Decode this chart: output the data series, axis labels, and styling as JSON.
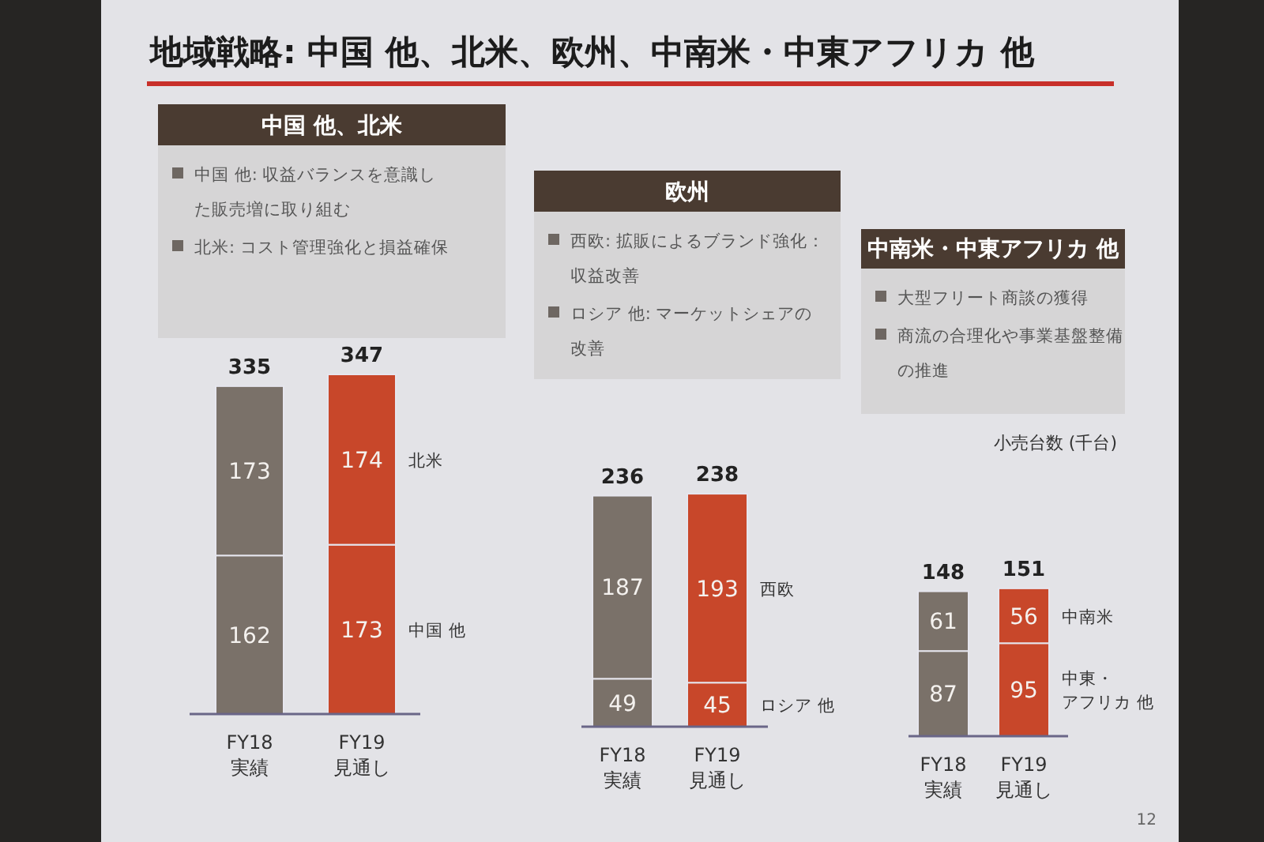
{
  "chart_data": [
    {
      "type": "other",
      "title": "地域戦略: 中国 他、北米、欧州、中南米・中東アフリカ 他",
      "annotations": [
        "12"
      ]
    },
    {
      "type": "bar",
      "title": "中国 他、北米",
      "annotations": [
        "中国 他: 収益バランスを意識した販売増に取り組む",
        "北米: コスト管理強化と損益確保"
      ],
      "categories": [
        "FY18\n実績",
        "FY19\n見通し"
      ],
      "stacked": true,
      "data_labels": true,
      "series": [
        {
          "name": "中国 他",
          "colors": [
            "#7a7169",
            "#c8472a"
          ],
          "values": [
            162,
            173
          ]
        },
        {
          "name": "北米",
          "colors": [
            "#7a7169",
            "#c8472a"
          ],
          "values": [
            173,
            174
          ]
        }
      ],
      "totals": [
        "335",
        "347"
      ]
    },
    {
      "type": "bar",
      "title": "欧州",
      "annotations": [
        "西欧: 拡販によるブランド強化：収益改善",
        "ロシア 他: マーケットシェアの改善"
      ],
      "categories": [
        "FY18\n実績",
        "FY19\n見通し"
      ],
      "stacked": true,
      "data_labels": true,
      "series": [
        {
          "name": "ロシア 他",
          "colors": [
            "#7a7169",
            "#c8472a"
          ],
          "values": [
            49,
            45
          ]
        },
        {
          "name": "西欧",
          "colors": [
            "#7a7169",
            "#c8472a"
          ],
          "values": [
            187,
            193
          ]
        }
      ],
      "totals": [
        "236",
        "238"
      ]
    },
    {
      "type": "bar",
      "title": "中南米・中東アフリカ 他",
      "ylabel": "小売台数 (千台)",
      "annotations": [
        "大型フリート商談の獲得",
        "商流の合理化や事業基盤整備の推進"
      ],
      "categories": [
        "FY18\n実績",
        "FY19\n見通し"
      ],
      "stacked": true,
      "data_labels": true,
      "series": [
        {
          "name": "中東・アフリカ 他",
          "colors": [
            "#7a7169",
            "#c8472a"
          ],
          "values": [
            87,
            95
          ]
        },
        {
          "name": "中南米",
          "colors": [
            "#7a7169",
            "#c8472a"
          ],
          "values": [
            61,
            56
          ]
        }
      ],
      "totals": [
        "148",
        "151"
      ]
    }
  ]
}
